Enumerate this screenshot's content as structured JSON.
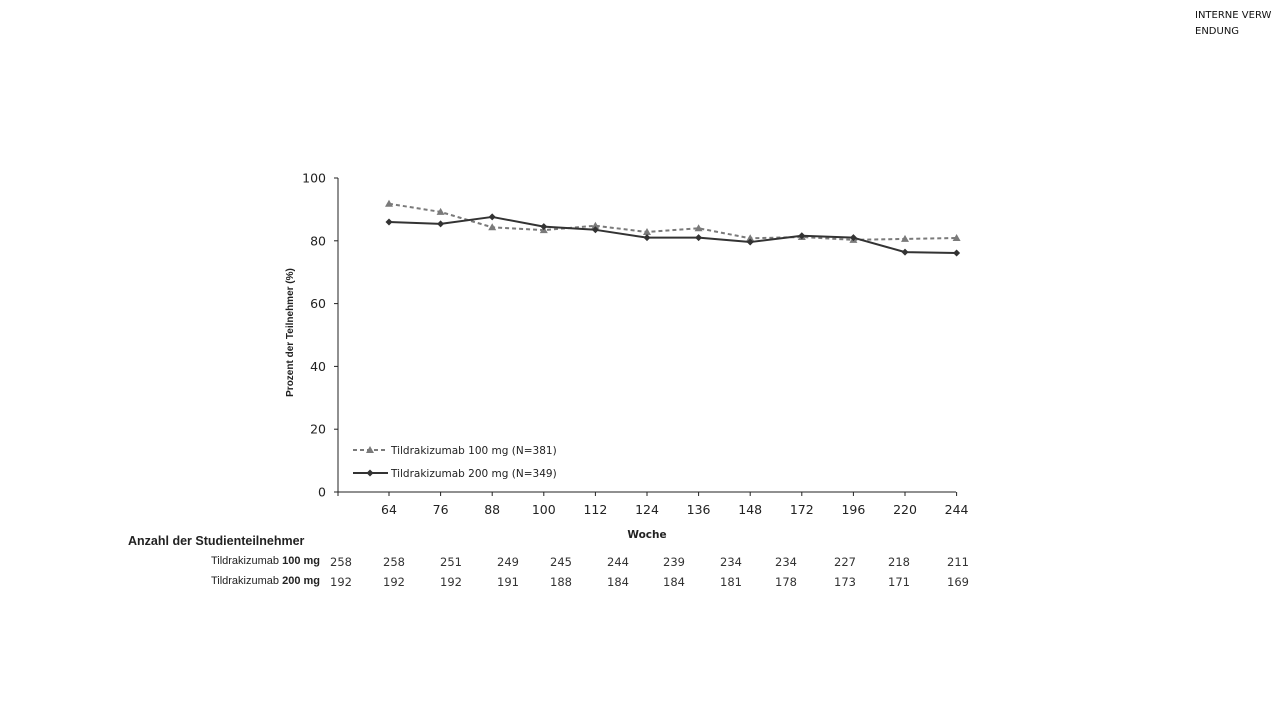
{
  "stamp": "INTERNE VERWENDUNG",
  "chart_data": {
    "type": "line",
    "xlabel": "Woche",
    "ylabel": "Prozent der Teilnehmer (%)",
    "ylim": [
      0,
      100
    ],
    "yticks": [
      0,
      20,
      40,
      60,
      80,
      100
    ],
    "categories": [
      "64",
      "76",
      "88",
      "100",
      "112",
      "124",
      "136",
      "148",
      "172",
      "196",
      "220",
      "244"
    ],
    "legend_position": "bottom-left",
    "series": [
      {
        "name": "Tildrakizumab 100 mg (N=381)",
        "values": [
          91.8,
          89.2,
          84.3,
          83.4,
          84.8,
          82.8,
          84.0,
          80.8,
          81.2,
          80.3,
          80.6,
          80.9
        ],
        "color": "#7a7a7a",
        "dash": true,
        "marker": "triangle"
      },
      {
        "name": "Tildrakizumab 200 mg (N=349)",
        "values": [
          86.0,
          85.4,
          87.6,
          84.5,
          83.5,
          81.0,
          81.0,
          79.6,
          81.6,
          81.0,
          76.4,
          76.1
        ],
        "color": "#333333",
        "dash": false,
        "marker": "diamond"
      }
    ]
  },
  "at_risk": {
    "title": "Anzahl der Studienteilnehmer",
    "rows": [
      {
        "label_prefix": "Tildrakizumab ",
        "label_dose": "100 mg",
        "values": [
          "258",
          "258",
          "251",
          "249",
          "245",
          "244",
          "239",
          "234",
          "234",
          "227",
          "218",
          "211"
        ]
      },
      {
        "label_prefix": "Tildrakizumab ",
        "label_dose": "200 mg",
        "values": [
          "192",
          "192",
          "192",
          "191",
          "188",
          "184",
          "184",
          "181",
          "178",
          "173",
          "171",
          "169"
        ]
      }
    ]
  }
}
